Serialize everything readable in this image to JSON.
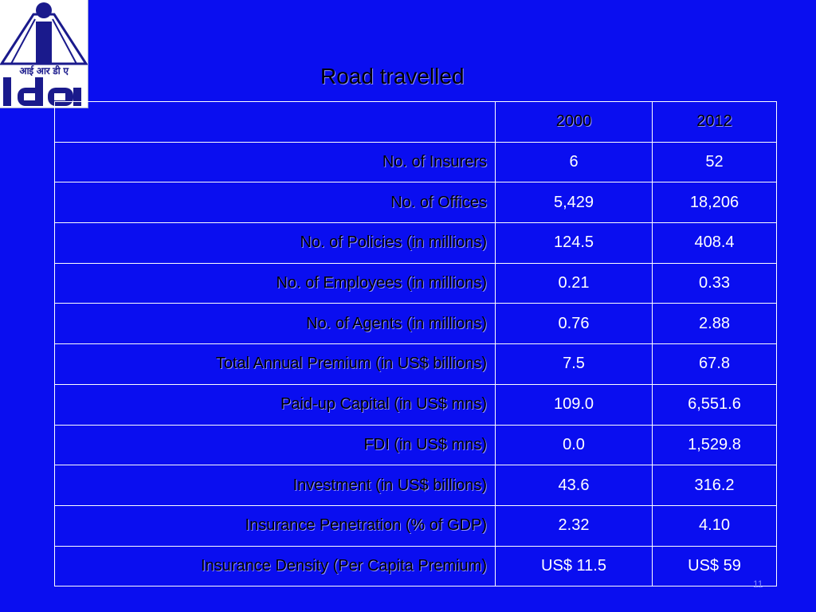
{
  "logo": {
    "hindi_text": "आई आर डी ए"
  },
  "title": "Road travelled",
  "table": {
    "headers": [
      "",
      "2000",
      "2012"
    ],
    "rows": [
      {
        "label": "No. of Insurers",
        "y2000": "6",
        "y2012": "52"
      },
      {
        "label": "No. of Offices",
        "y2000": "5,429",
        "y2012": "18,206"
      },
      {
        "label": "No. of Policies (in millions)",
        "y2000": "124.5",
        "y2012": "408.4"
      },
      {
        "label": "No. of Employees (in millions)",
        "y2000": "0.21",
        "y2012": "0.33"
      },
      {
        "label": "No. of Agents (in millions)",
        "y2000": "0.76",
        "y2012": "2.88"
      },
      {
        "label": "Total Annual Premium (in US$ billions)",
        "y2000": "7.5",
        "y2012": "67.8"
      },
      {
        "label": "Paid-up Capital (in US$ mns)",
        "y2000": "109.0",
        "y2012": "6,551.6"
      },
      {
        "label": "FDI (in US$ mns)",
        "y2000": "0.0",
        "y2012": "1,529.8"
      },
      {
        "label": "Investment (in US$ billions)",
        "y2000": "43.6",
        "y2012": "316.2"
      },
      {
        "label": "Insurance Penetration (% of GDP)",
        "y2000": "2.32",
        "y2012": "4.10"
      },
      {
        "label": "Insurance Density (Per Capita Premium)",
        "y2000": "US$ 11.5",
        "y2012": "US$ 59"
      }
    ]
  },
  "slide_number": "11",
  "colors": {
    "background": "#0a0ef0",
    "logo_blue": "#1a1a8c",
    "grid": "#ffffff"
  }
}
